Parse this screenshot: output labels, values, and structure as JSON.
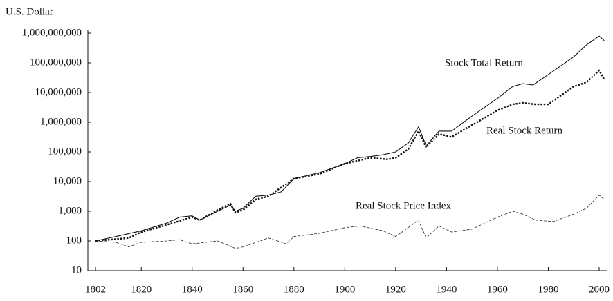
{
  "chart_data": {
    "type": "line",
    "ylabel": "U.S. Dollar",
    "log_y": true,
    "xlim": [
      1799,
      2003
    ],
    "xticks": [
      1802,
      1820,
      1840,
      1860,
      1880,
      1900,
      1920,
      1940,
      1960,
      1980,
      2000
    ],
    "ylim": [
      10,
      1000000000
    ],
    "yticks": [
      10,
      100,
      {
        "value": 1000,
        "label": "1,000"
      },
      {
        "value": 10000,
        "label": "10,000"
      },
      {
        "value": 100000,
        "label": "100,000"
      },
      {
        "value": 1000000,
        "label": "1,000,000"
      },
      {
        "value": 10000000,
        "label": "10,000,000"
      },
      {
        "value": 100000000,
        "label": "100,000,000"
      },
      {
        "value": 1000000000,
        "label": "1,000,000,000"
      }
    ],
    "series": [
      {
        "name": "Stock Total Return",
        "color": "#111111",
        "line_style": "solid",
        "x": [
          1802,
          1810,
          1820,
          1830,
          1835,
          1840,
          1843,
          1850,
          1855,
          1857,
          1860,
          1865,
          1870,
          1875,
          1880,
          1890,
          1900,
          1905,
          1910,
          1915,
          1920,
          1925,
          1929,
          1932,
          1937,
          1942,
          1950,
          1960,
          1966,
          1970,
          1974,
          1980,
          1985,
          1990,
          1995,
          2000,
          2002
        ],
        "values": [
          100,
          140,
          220,
          400,
          630,
          700,
          500,
          1000,
          1600,
          1000,
          1250,
          3200,
          3500,
          4500,
          12500,
          20000,
          40000,
          63000,
          70000,
          80000,
          100000,
          200000,
          700000,
          160000,
          500000,
          500000,
          1600000,
          6300000,
          16000000,
          20000000,
          18000000,
          40000000,
          80000000,
          160000000,
          400000000,
          800000000,
          560000000
        ]
      },
      {
        "name": "Real Stock Return",
        "color": "#111111",
        "line_style": "dotted",
        "x": [
          1802,
          1815,
          1820,
          1830,
          1840,
          1843,
          1850,
          1855,
          1857,
          1860,
          1865,
          1870,
          1880,
          1890,
          1900,
          1910,
          1917,
          1920,
          1925,
          1929,
          1932,
          1937,
          1942,
          1950,
          1960,
          1966,
          1970,
          1975,
          1980,
          1985,
          1990,
          1995,
          2000,
          2002
        ],
        "values": [
          100,
          125,
          200,
          350,
          630,
          500,
          1100,
          1800,
          900,
          1100,
          2500,
          3200,
          12500,
          18000,
          40000,
          63000,
          56000,
          63000,
          125000,
          500000,
          140000,
          400000,
          320000,
          800000,
          2500000,
          4000000,
          4500000,
          4000000,
          4000000,
          8000000,
          16000000,
          22000000,
          56000000,
          28000000
        ]
      },
      {
        "name": "Real Stock Price Index",
        "color": "#222222",
        "line_style": "dashed",
        "x": [
          1802,
          1810,
          1815,
          1820,
          1830,
          1835,
          1840,
          1850,
          1857,
          1860,
          1870,
          1877,
          1880,
          1890,
          1900,
          1906,
          1915,
          1920,
          1929,
          1932,
          1937,
          1942,
          1950,
          1960,
          1966,
          1970,
          1975,
          1982,
          1990,
          1995,
          2000,
          2002
        ],
        "values": [
          100,
          90,
          63,
          90,
          100,
          110,
          80,
          100,
          56,
          63,
          125,
          80,
          140,
          180,
          280,
          320,
          220,
          140,
          500,
          125,
          320,
          200,
          250,
          630,
          1000,
          800,
          500,
          450,
          800,
          1250,
          3500,
          2500
        ]
      }
    ]
  }
}
